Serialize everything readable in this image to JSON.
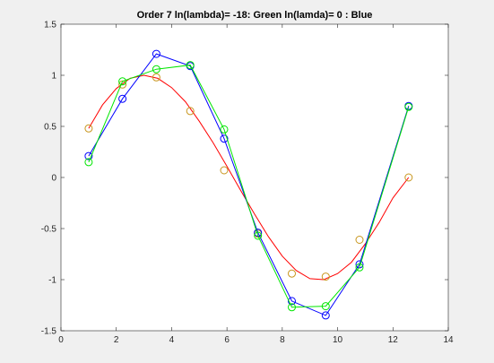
{
  "chart_data": {
    "type": "line",
    "title": "Order 7 ln(lambda)= -18: Green ln(lamda)= 0 : Blue",
    "xlabel": "",
    "ylabel": "",
    "xlim": [
      0,
      14
    ],
    "ylim": [
      -1.5,
      1.5
    ],
    "xticks": [
      0,
      2,
      4,
      6,
      8,
      10,
      12,
      14
    ],
    "yticks": [
      -1.5,
      -1,
      -0.5,
      0,
      0.5,
      1,
      1.5
    ],
    "xtick_labels": [
      "0",
      "2",
      "4",
      "6",
      "8",
      "10",
      "12",
      "14"
    ],
    "ytick_labels": [
      "-1.5",
      "-1",
      "-0.5",
      "0",
      "0.5",
      "1",
      "1.5"
    ],
    "grid": false,
    "legend": "none",
    "series": [
      {
        "kind": "curve",
        "color": "#ff0000",
        "x": [
          1.0,
          1.5,
          2.0,
          2.5,
          3.0,
          3.5,
          4.0,
          4.5,
          5.0,
          5.5,
          6.0,
          6.5,
          7.0,
          7.5,
          8.0,
          8.5,
          9.0,
          9.5,
          10.0,
          10.5,
          11.0,
          11.5,
          12.0,
          12.566
        ],
        "values": [
          0.48,
          0.71,
          0.87,
          0.97,
          1.0,
          0.97,
          0.88,
          0.74,
          0.55,
          0.34,
          0.11,
          -0.13,
          -0.36,
          -0.58,
          -0.77,
          -0.91,
          -0.99,
          -1.0,
          -0.94,
          -0.83,
          -0.65,
          -0.44,
          -0.2,
          0.0
        ]
      },
      {
        "kind": "markers",
        "color": "#c8961e",
        "x": [
          1.0,
          2.224,
          3.448,
          4.673,
          5.897,
          7.121,
          8.345,
          9.569,
          10.793,
          12.566
        ],
        "values": [
          0.48,
          0.91,
          0.98,
          0.65,
          0.07,
          -0.55,
          -0.94,
          -0.97,
          -0.61,
          0.0
        ],
        "positions": [
          1.0,
          2.224,
          3.448,
          4.673,
          5.897,
          7.121,
          8.345,
          9.569,
          10.793,
          12.566
        ]
      },
      {
        "kind": "line-markers",
        "color": "#0000ff",
        "x": [
          1.0,
          2.224,
          3.448,
          4.673,
          5.897,
          7.121,
          8.345,
          9.569,
          10.793,
          12.566
        ],
        "values": [
          0.21,
          0.77,
          1.21,
          1.09,
          0.38,
          -0.54,
          -1.21,
          -1.35,
          -0.85,
          0.7
        ]
      },
      {
        "kind": "line-markers",
        "color": "#00e600",
        "x": [
          1.0,
          2.224,
          3.448,
          4.673,
          5.897,
          7.121,
          8.345,
          9.569,
          10.793,
          12.566
        ],
        "values": [
          0.15,
          0.94,
          1.06,
          1.1,
          0.47,
          -0.57,
          -1.27,
          -1.26,
          -0.88,
          0.69
        ]
      }
    ]
  }
}
